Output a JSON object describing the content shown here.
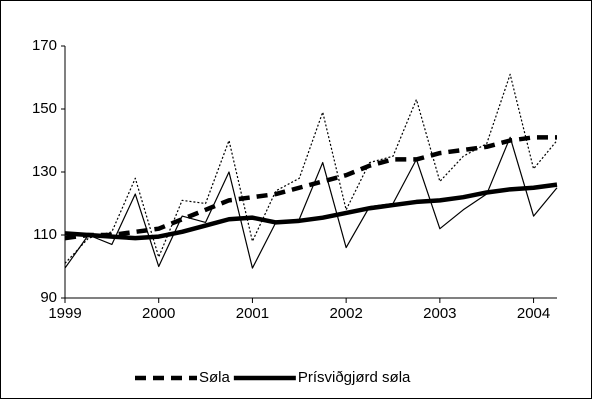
{
  "chart_data": {
    "type": "line",
    "categories": [
      "1999",
      null,
      null,
      null,
      "2000",
      null,
      null,
      null,
      "2001",
      null,
      null,
      null,
      "2002",
      null,
      null,
      null,
      "2003",
      null,
      null,
      null,
      "2004",
      null
    ],
    "series": [
      {
        "color": "#000000",
        "style": "dotted",
        "weight": "thin",
        "values": [
          101,
          109,
          111,
          128,
          103,
          121,
          120,
          140,
          108,
          124,
          128,
          149,
          118,
          133,
          135,
          153,
          127,
          135,
          139,
          161,
          131,
          140
        ]
      },
      {
        "color": "#000000",
        "style": "solid",
        "weight": "thin",
        "values": [
          99.5,
          110,
          107,
          123,
          100,
          116,
          114,
          130,
          99.5,
          114,
          115,
          133,
          106,
          119,
          120,
          134,
          112,
          118,
          123,
          141,
          116,
          125
        ]
      },
      {
        "name": "Søla",
        "color": "#000000",
        "style": "dashed",
        "weight": "thick",
        "values": [
          109,
          110,
          110,
          111,
          112,
          115,
          118,
          121,
          122,
          123,
          125,
          127,
          129,
          132,
          134,
          134,
          136,
          137,
          138,
          140,
          141,
          141
        ]
      },
      {
        "name": "Prísviðgjørd søla",
        "color": "#000000",
        "style": "solid",
        "weight": "thick",
        "values": [
          110.5,
          110,
          109.5,
          109,
          109.5,
          111,
          113,
          115,
          115.5,
          114,
          114.5,
          115.5,
          117,
          118.5,
          119.5,
          120.5,
          121,
          122,
          123.5,
          124.5,
          125,
          126
        ]
      }
    ],
    "ylim": [
      90,
      170
    ],
    "yticks": [
      90,
      110,
      130,
      150,
      170
    ],
    "grid": false,
    "legend": "bottom"
  }
}
